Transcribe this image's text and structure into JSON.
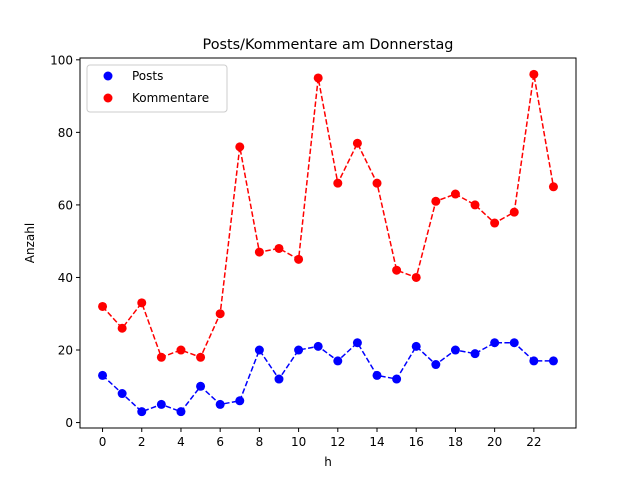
{
  "chart_data": {
    "type": "line",
    "title": "Posts/Kommentare am Donnerstag",
    "xlabel": "h",
    "ylabel": "Anzahl",
    "xlim": [
      -1.15,
      24.15
    ],
    "ylim": [
      -1.5,
      100.5
    ],
    "x_ticks": [
      0,
      2,
      4,
      6,
      8,
      10,
      12,
      14,
      16,
      18,
      20,
      22
    ],
    "y_ticks": [
      0,
      20,
      40,
      60,
      80,
      100
    ],
    "grid": false,
    "legend_position": "top-left",
    "x": [
      0,
      1,
      2,
      3,
      4,
      5,
      6,
      7,
      8,
      9,
      10,
      11,
      12,
      13,
      14,
      15,
      16,
      17,
      18,
      19,
      20,
      21,
      22,
      23
    ],
    "series": [
      {
        "name": "Posts",
        "color": "#0000ff",
        "line_style": "dashed",
        "marker": "circle",
        "values": [
          13,
          8,
          3,
          5,
          3,
          10,
          5,
          6,
          20,
          12,
          20,
          21,
          17,
          22,
          13,
          12,
          21,
          16,
          20,
          19,
          22,
          22,
          17,
          17
        ]
      },
      {
        "name": "Kommentare",
        "color": "#ff0000",
        "line_style": "dashed",
        "marker": "circle",
        "values": [
          32,
          26,
          33,
          18,
          20,
          18,
          30,
          76,
          47,
          48,
          45,
          95,
          66,
          77,
          66,
          42,
          40,
          61,
          63,
          60,
          55,
          58,
          96,
          65
        ]
      }
    ]
  }
}
